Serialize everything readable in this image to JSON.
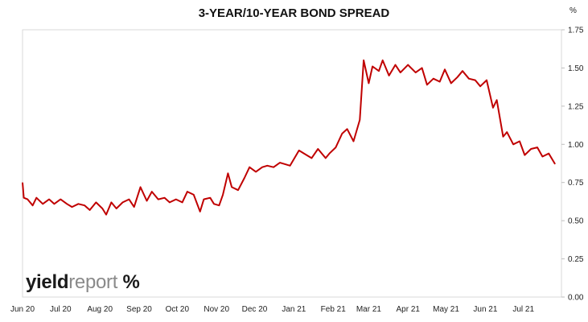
{
  "chart_data": {
    "type": "line",
    "title": "3-YEAR/10-YEAR BOND SPREAD",
    "unit": "%",
    "xlabel": "",
    "ylabel": "",
    "ylim": [
      0,
      1.75
    ],
    "y_ticks": [
      0.0,
      0.25,
      0.5,
      0.75,
      1.0,
      1.25,
      1.5,
      1.75
    ],
    "y_tick_labels": [
      "0.00",
      "0.25",
      "0.50",
      "0.75",
      "1.00",
      "1.25",
      "1.50",
      "1.75"
    ],
    "x_ticks": [
      "Jun 20",
      "Jul 20",
      "Aug 20",
      "Sep 20",
      "Oct 20",
      "Nov 20",
      "Dec 20",
      "Jan 21",
      "Feb 21",
      "Mar 21",
      "Apr 21",
      "May 21",
      "Jun 21",
      "Jul 21"
    ],
    "grid": false,
    "legend": "none",
    "series_color": "#c00000",
    "series": [
      {
        "x": [
          "2020-06-01",
          "2020-06-02",
          "2020-06-05",
          "2020-06-09",
          "2020-06-12",
          "2020-06-17",
          "2020-06-22",
          "2020-06-26",
          "2020-07-01",
          "2020-07-06",
          "2020-07-10",
          "2020-07-15",
          "2020-07-20",
          "2020-07-24",
          "2020-07-29",
          "2020-08-03",
          "2020-08-06",
          "2020-08-10",
          "2020-08-14",
          "2020-08-19",
          "2020-08-24",
          "2020-08-28",
          "2020-09-02",
          "2020-09-07",
          "2020-09-11",
          "2020-09-16",
          "2020-09-21",
          "2020-09-25",
          "2020-09-30",
          "2020-10-05",
          "2020-10-09",
          "2020-10-14",
          "2020-10-19",
          "2020-10-22",
          "2020-10-27",
          "2020-10-30",
          "2020-11-03",
          "2020-11-06",
          "2020-11-10",
          "2020-11-13",
          "2020-11-18",
          "2020-11-23",
          "2020-11-27",
          "2020-12-02",
          "2020-12-07",
          "2020-12-11",
          "2020-12-16",
          "2020-12-21",
          "2020-12-29",
          "2021-01-05",
          "2021-01-11",
          "2021-01-15",
          "2021-01-20",
          "2021-01-26",
          "2021-01-29",
          "2021-02-03",
          "2021-02-08",
          "2021-02-12",
          "2021-02-17",
          "2021-02-22",
          "2021-02-25",
          "2021-03-01",
          "2021-03-04",
          "2021-03-09",
          "2021-03-12",
          "2021-03-17",
          "2021-03-22",
          "2021-03-26",
          "2021-04-01",
          "2021-04-07",
          "2021-04-12",
          "2021-04-16",
          "2021-04-21",
          "2021-04-26",
          "2021-04-30",
          "2021-05-05",
          "2021-05-10",
          "2021-05-14",
          "2021-05-19",
          "2021-05-24",
          "2021-05-28",
          "2021-06-02",
          "2021-06-07",
          "2021-06-10",
          "2021-06-15",
          "2021-06-18",
          "2021-06-23",
          "2021-06-28",
          "2021-07-02",
          "2021-07-07",
          "2021-07-12",
          "2021-07-16",
          "2021-07-21",
          "2021-07-26"
        ],
        "y": [
          0.75,
          0.65,
          0.64,
          0.6,
          0.65,
          0.61,
          0.64,
          0.61,
          0.64,
          0.61,
          0.59,
          0.61,
          0.6,
          0.57,
          0.62,
          0.58,
          0.54,
          0.62,
          0.58,
          0.62,
          0.64,
          0.59,
          0.72,
          0.63,
          0.69,
          0.64,
          0.65,
          0.62,
          0.64,
          0.62,
          0.69,
          0.67,
          0.56,
          0.64,
          0.65,
          0.61,
          0.6,
          0.67,
          0.81,
          0.72,
          0.7,
          0.78,
          0.85,
          0.82,
          0.85,
          0.86,
          0.85,
          0.88,
          0.86,
          0.96,
          0.93,
          0.91,
          0.97,
          0.91,
          0.94,
          0.98,
          1.07,
          1.1,
          1.02,
          1.16,
          1.55,
          1.4,
          1.51,
          1.48,
          1.55,
          1.45,
          1.52,
          1.47,
          1.52,
          1.47,
          1.5,
          1.39,
          1.43,
          1.41,
          1.49,
          1.4,
          1.44,
          1.48,
          1.43,
          1.42,
          1.38,
          1.42,
          1.24,
          1.29,
          1.05,
          1.08,
          1.0,
          1.02,
          0.93,
          0.97,
          0.98,
          0.92,
          0.94,
          0.87
        ]
      }
    ]
  }
}
